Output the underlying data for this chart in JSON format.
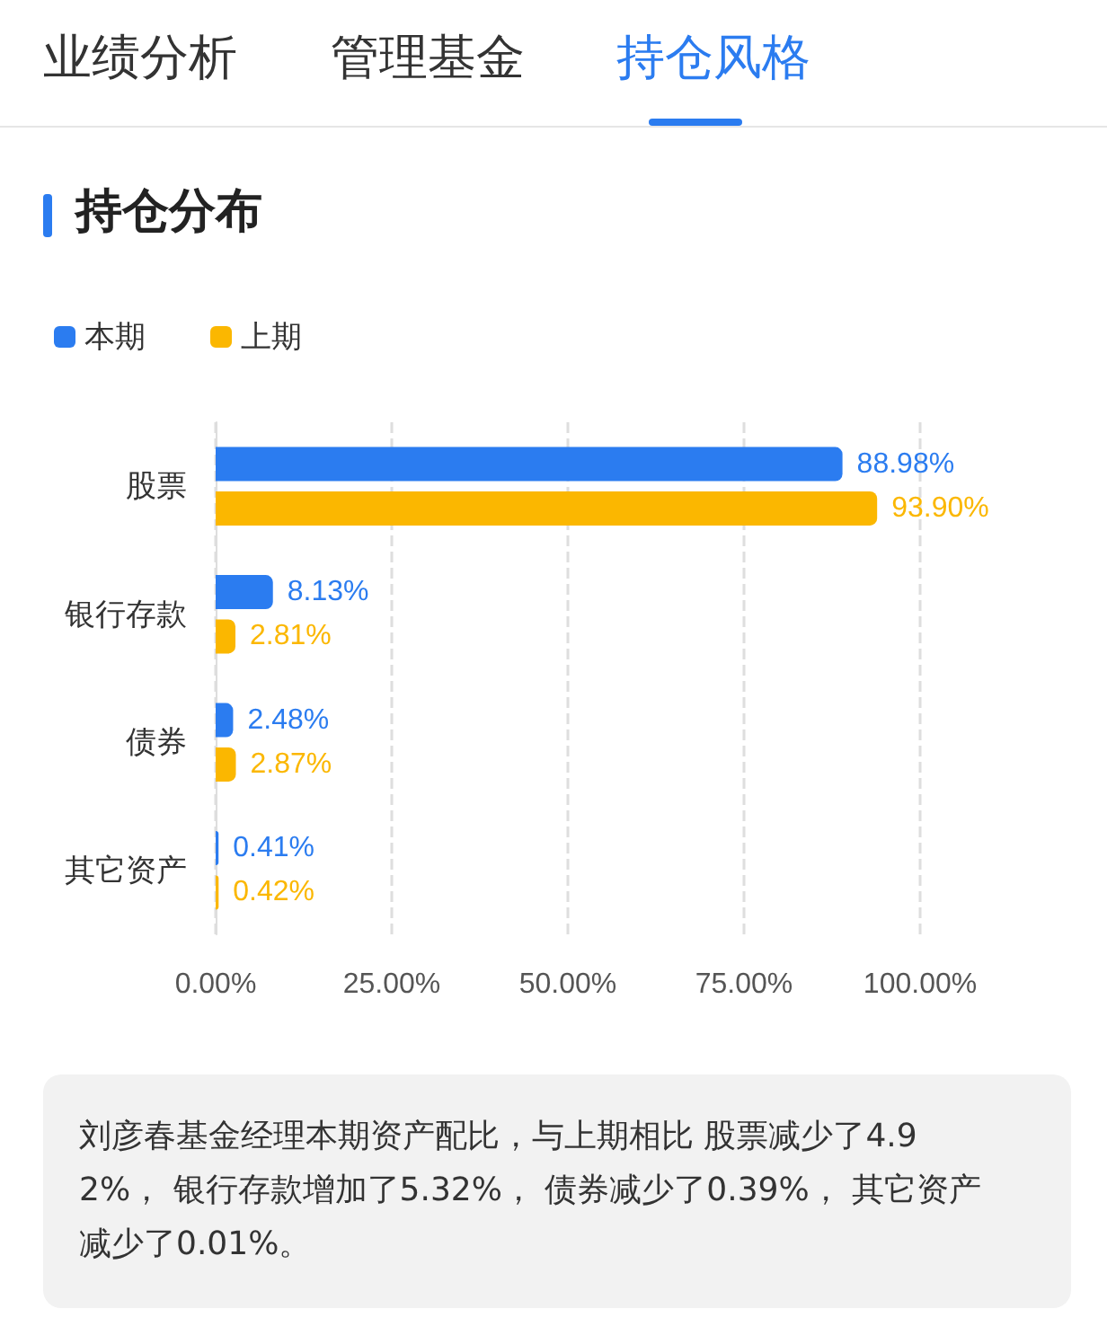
{
  "chart_data": {
    "type": "bar",
    "orientation": "horizontal",
    "title": "持仓分布",
    "categories": [
      "股票",
      "银行存款",
      "债券",
      "其它资产"
    ],
    "series": [
      {
        "name": "本期",
        "color": "#2b7cf0",
        "values": [
          88.98,
          8.13,
          2.48,
          0.41
        ],
        "value_labels": [
          "88.98%",
          "8.13%",
          "2.48%",
          "0.41%"
        ]
      },
      {
        "name": "上期",
        "color": "#fbb700",
        "values": [
          93.9,
          2.81,
          2.87,
          0.42
        ],
        "value_labels": [
          "93.90%",
          "2.81%",
          "2.87%",
          "0.42%"
        ]
      }
    ],
    "xlim": [
      0,
      100
    ],
    "xticks": [
      {
        "value": 0,
        "label": "0.00%"
      },
      {
        "value": 25,
        "label": "25.00%"
      },
      {
        "value": 50,
        "label": "50.00%"
      },
      {
        "value": 75,
        "label": "75.00%"
      },
      {
        "value": 100,
        "label": "100.00%"
      }
    ],
    "grid": "x",
    "legend": "top left",
    "annotations": [
      "业绩分析",
      "管理基金",
      "持仓风格",
      "刘彦春基金经理本期资产配比，与上期相比 股票减少了4.92%， 银行存款增加了5.32%， 债券减少了0.39%， 其它资产减少了0.01%。"
    ]
  }
}
